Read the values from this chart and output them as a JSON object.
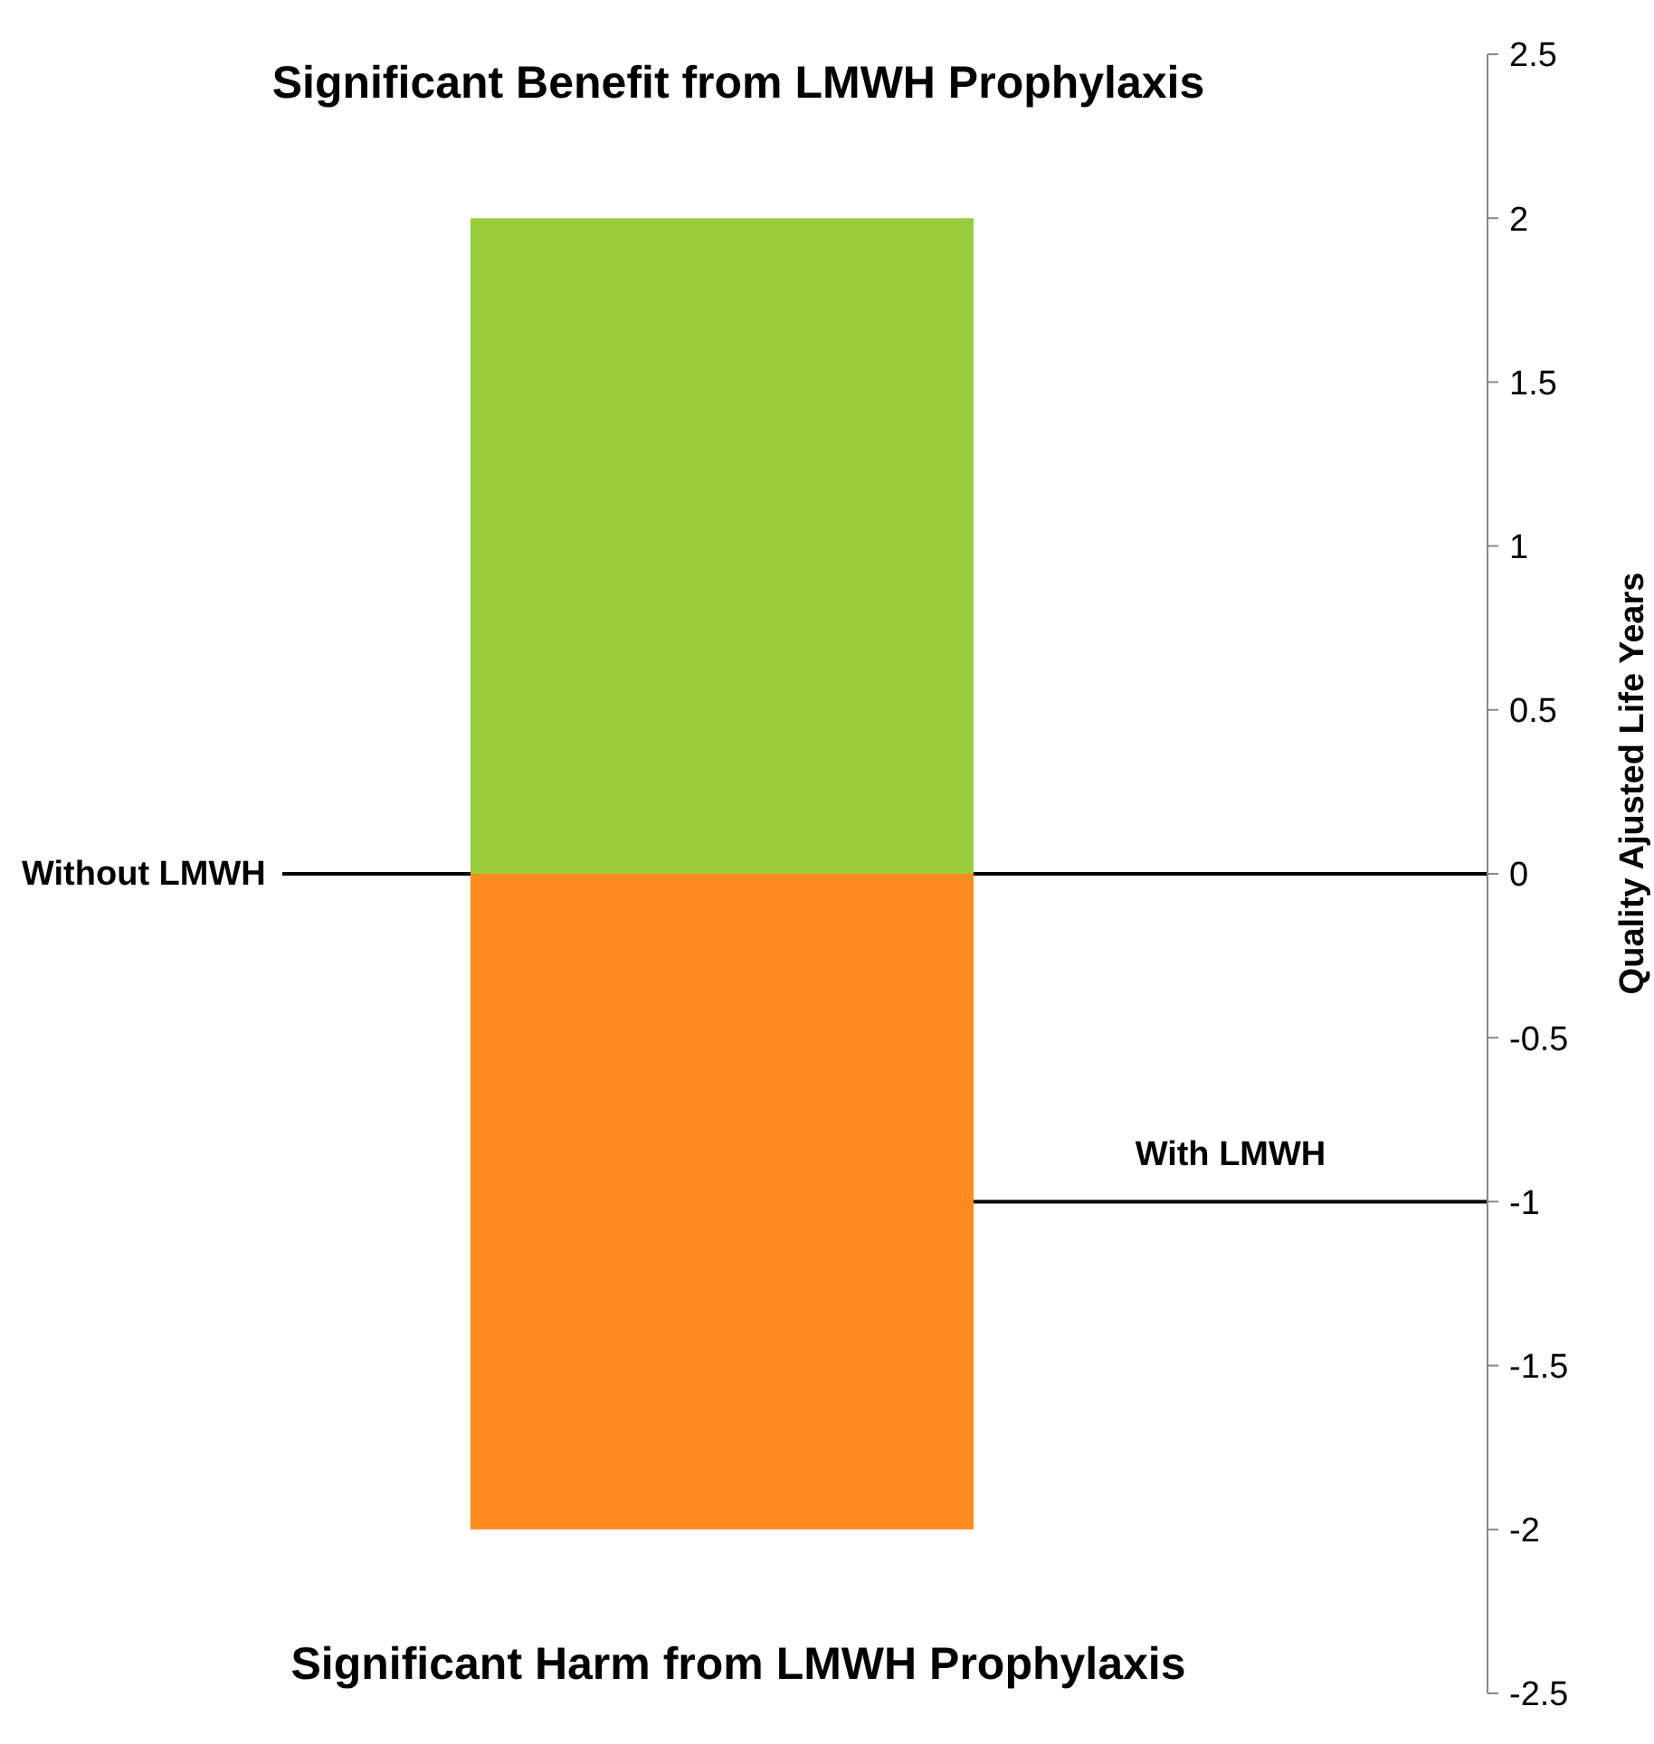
{
  "chart_data": {
    "type": "bar",
    "title": "Significant Benefit from LMWH Prophylaxis",
    "ylabel": "Quality Ajusted Life Years",
    "categories": [
      null
    ],
    "stacked": true,
    "series": [
      {
        "color": "#9acd3c",
        "values": [
          2
        ]
      },
      {
        "color": "#ff8a1e",
        "values": [
          -2
        ]
      }
    ],
    "ylim": [
      -2.5,
      2.5
    ],
    "yticks": [
      -2.5,
      -2,
      -1.5,
      -1,
      -0.5,
      0,
      0.5,
      1,
      1.5,
      2,
      2.5
    ],
    "ref_lines": [
      {
        "axis": "y",
        "value": 0,
        "label": "Without LMWH",
        "color": "#000000"
      },
      {
        "axis": "y",
        "value": -1,
        "label": "With LMWH",
        "color": "#000000"
      }
    ],
    "annotations": [
      "Significant Harm from LMWH Prophylaxis"
    ],
    "grid": false,
    "legend": false
  }
}
